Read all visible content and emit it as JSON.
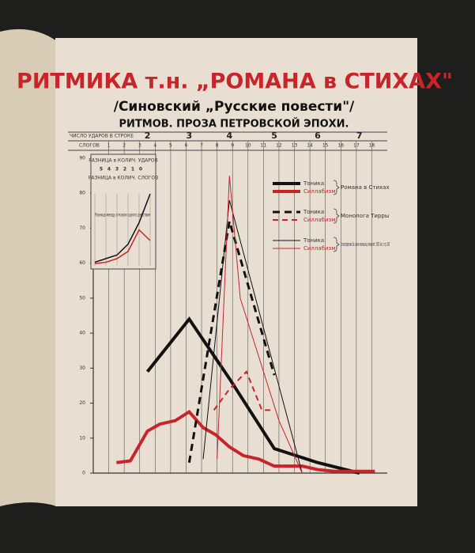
{
  "chart_data": [
    {
      "type": "line",
      "title": "РИТМИКА т.н. „РОМАНА в СТИХАХ\"",
      "subtitle": "/Синовский „Русские повести\"/",
      "subtitle2": "РИТМОВ. ПРОЗА ПЕТРОВСКОЙ ЭПОХИ.",
      "x2label": "ЧИСЛО УДАРОВ В СТРОКЕ",
      "xlabel": "СЛОГОВ",
      "xlim": [
        0,
        19
      ],
      "xticks": [
        1,
        2,
        3,
        4,
        5,
        6,
        7,
        8,
        9,
        10,
        11,
        12,
        13,
        14,
        15,
        16,
        17,
        18
      ],
      "x2ticks": [
        {
          "value": 3.5,
          "label": "2"
        },
        {
          "value": 6.2,
          "label": "3"
        },
        {
          "value": 8.8,
          "label": "4"
        },
        {
          "value": 11.7,
          "label": "5"
        },
        {
          "value": 14.5,
          "label": "6"
        },
        {
          "value": 17.2,
          "label": "7"
        }
      ],
      "ylim": [
        0,
        90
      ],
      "yticks": [
        0,
        10,
        20,
        30,
        40,
        50,
        60,
        70,
        80,
        90
      ],
      "grid": true,
      "series": [
        {
          "name": "Тоника",
          "group": "Романа в Стихах",
          "color": "#111111",
          "width": 4,
          "dash": "none",
          "x": [
            3.5,
            6.2,
            8.8,
            11.7,
            14.5,
            17.2
          ],
          "values": [
            29,
            44,
            27,
            7,
            3,
            0
          ]
        },
        {
          "name": "Силлабизм",
          "group": "Романа в Стихах",
          "color": "#c8242a",
          "width": 4,
          "dash": "none",
          "x": [
            1.5,
            2.4,
            3.5,
            4.3,
            5.3,
            6.2,
            7.1,
            7.9,
            8.8,
            9.7,
            10.7,
            11.7,
            12.7,
            13.5,
            14.5,
            15.6,
            17.2,
            18.2
          ],
          "values": [
            3,
            3.5,
            12,
            14,
            15,
            17.5,
            13,
            11,
            7.5,
            5,
            4,
            2,
            2,
            2,
            1,
            0.5,
            0.5,
            0.5
          ]
        },
        {
          "name": "Тоника",
          "group": "Монолога Тирры",
          "color": "#111111",
          "width": 3,
          "dash": "9 6",
          "x": [
            6.2,
            8.8,
            11.7
          ],
          "values": [
            3,
            72,
            28
          ]
        },
        {
          "name": "Силлабизм",
          "group": "Монолога Тирры",
          "color": "#c8242a",
          "width": 2,
          "dash": "7 5",
          "x": [
            7.8,
            8.8,
            9.9,
            10.9,
            11.7
          ],
          "values": [
            18,
            24,
            29,
            18,
            18
          ]
        },
        {
          "name": "Тоника",
          "group": "Стихотворения: Вс. жалю несмысны, мелькнет. 1905. Акт.-стр. 363",
          "color": "#111111",
          "width": 1,
          "dash": "none",
          "x": [
            7.1,
            8.8,
            13.5
          ],
          "values": [
            4,
            78,
            0
          ]
        },
        {
          "name": "Силлабизм",
          "group": "Стихотворения: Вс. жалю несмысны, мелькнет. 1905. Акт.-стр. 363",
          "color": "#c8242a",
          "width": 1,
          "dash": "none",
          "x": [
            8.0,
            8.8,
            9.5,
            12.0,
            13.5
          ],
          "values": [
            4,
            85,
            50,
            15,
            0
          ]
        }
      ]
    },
    {
      "type": "line",
      "title": "РАЗНИЦА в КОЛИЧ. УДАРОВ",
      "subtitle": "РАЗНИЦА в КОЛИЧ. СЛОГОВ",
      "note": "Разница между отказом одного действия",
      "categories": [
        "5",
        "4",
        "3",
        "2",
        "1",
        "0"
      ],
      "ylim": [
        0,
        10
      ],
      "series": [
        {
          "name": "Тоника",
          "color": "#111111",
          "width": 1.5,
          "dash": "none",
          "values": [
            0.5,
            1,
            1.5,
            3,
            6,
            10
          ]
        },
        {
          "name": "Силлабизм",
          "color": "#c8242a",
          "width": 1.5,
          "dash": "none",
          "values": [
            0.3,
            0.5,
            1,
            2,
            5,
            3.5
          ]
        }
      ]
    }
  ]
}
